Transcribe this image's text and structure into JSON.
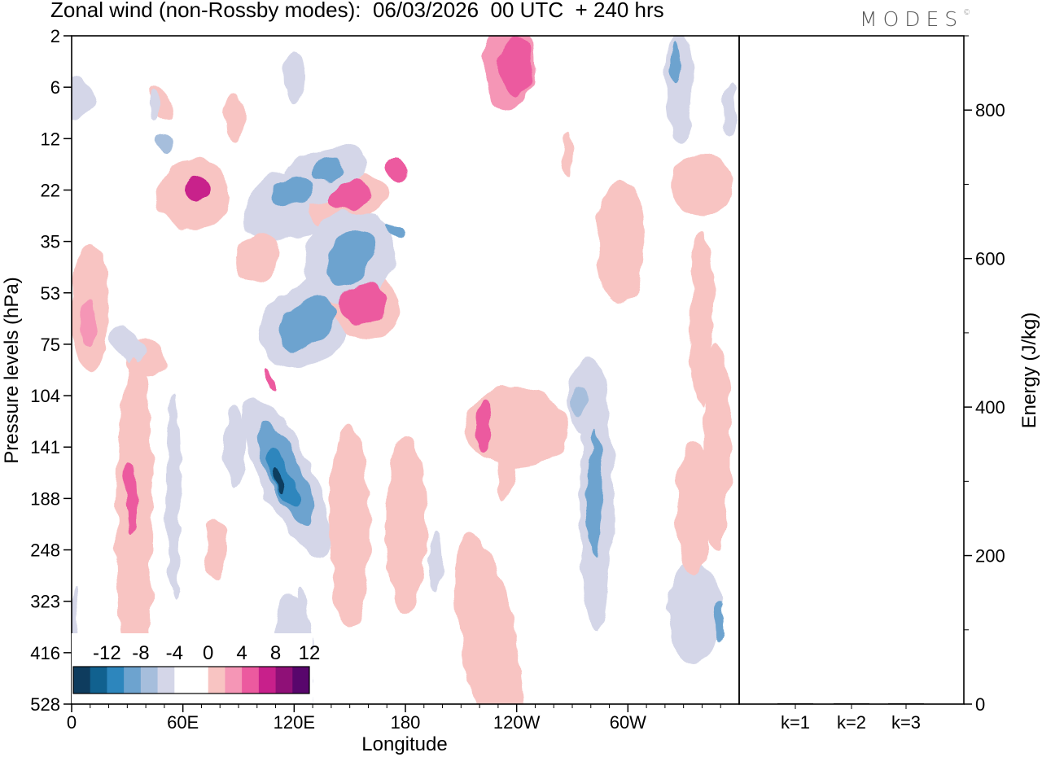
{
  "header": {
    "title": "Zonal wind (non-Rossby modes):  06/03/2026  00 UTC  + 240 hrs",
    "logo": "MODES"
  },
  "chart_data": [
    {
      "type": "heatmap",
      "title": "Zonal wind (non-Rossby modes):  06/03/2026  00 UTC  + 240 hrs",
      "xlabel": "Longitude",
      "ylabel": "Pressure levels (hPa)",
      "x_ticks": [
        "0",
        "60E",
        "120E",
        "180",
        "120W",
        "60W"
      ],
      "x_tick_degrees": [
        0,
        60,
        120,
        180,
        240,
        300
      ],
      "xlim": [
        0,
        360
      ],
      "y_ticks": [
        "2",
        "6",
        "12",
        "22",
        "35",
        "53",
        "75",
        "104",
        "141",
        "188",
        "248",
        "323",
        "416",
        "528"
      ],
      "colorbar": {
        "labels": [
          "-12",
          "-8",
          "-4",
          "0",
          "4",
          "8",
          "12"
        ],
        "colors": [
          "#0e3c5e",
          "#11618f",
          "#2d86bd",
          "#6da3cf",
          "#a6bedc",
          "#d4d6e8",
          "#ffffff",
          "#ffffff",
          "#f8c4c2",
          "#f596b6",
          "#ec5a9f",
          "#c8208b",
          "#8f1077",
          "#58066c"
        ]
      },
      "blobs": [
        {
          "lon": 112,
          "lev": 8.65,
          "w": 4.5,
          "h": 0.55,
          "v": -14,
          "rot": -25
        },
        {
          "lon": 114,
          "lev": 8.6,
          "w": 11,
          "h": 1.2,
          "v": -10,
          "rot": -25
        },
        {
          "lon": 115,
          "lev": 8.5,
          "w": 18,
          "h": 2.2,
          "v": -7,
          "rot": -25
        },
        {
          "lon": 116,
          "lev": 8.6,
          "w": 28,
          "h": 3.4,
          "v": -3.5,
          "rot": -25
        },
        {
          "lon": 117,
          "lev": 11.5,
          "w": 15,
          "h": 1.2,
          "v": -3.5,
          "rot": 0
        },
        {
          "lon": 107,
          "lev": 6.7,
          "w": 4,
          "h": 0.5,
          "v": 6,
          "rot": -25
        },
        {
          "lon": 127,
          "lev": 5.6,
          "w": 36,
          "h": 0.8,
          "v": -6.5,
          "rot": -37
        },
        {
          "lon": 127,
          "lev": 5.6,
          "w": 56,
          "h": 1.5,
          "v": -3.5,
          "rot": -37
        },
        {
          "lon": 157,
          "lev": 5.2,
          "w": 26,
          "h": 0.8,
          "v": 6,
          "rot": -32
        },
        {
          "lon": 158,
          "lev": 5.2,
          "w": 36,
          "h": 1.5,
          "v": 3.5,
          "rot": -32
        },
        {
          "lon": 68,
          "lev": 3.0,
          "w": 14,
          "h": 0.5,
          "v": 9,
          "rot": -30
        },
        {
          "lon": 66,
          "lev": 3.1,
          "w": 40,
          "h": 1.4,
          "v": 3.5,
          "rot": -30
        },
        {
          "lon": 120,
          "lev": 3.0,
          "w": 22,
          "h": 0.6,
          "v": -7,
          "rot": -20
        },
        {
          "lon": 118,
          "lev": 3.3,
          "w": 54,
          "h": 1.3,
          "v": -3.5,
          "rot": -20
        },
        {
          "lon": 150,
          "lev": 3.1,
          "w": 22,
          "h": 0.5,
          "v": 7,
          "rot": -20
        },
        {
          "lon": 148,
          "lev": 3.2,
          "w": 44,
          "h": 1.0,
          "v": 3.5,
          "rot": -20
        },
        {
          "lon": 138,
          "lev": 2.6,
          "w": 16,
          "h": 0.5,
          "v": -7,
          "rot": -20
        },
        {
          "lon": 136,
          "lev": 2.7,
          "w": 48,
          "h": 1.0,
          "v": -3.5,
          "rot": -20
        },
        {
          "lon": 175,
          "lev": 2.6,
          "w": 10,
          "h": 0.5,
          "v": 7,
          "rot": -30
        },
        {
          "lon": 150,
          "lev": 4.3,
          "w": 52,
          "h": 1.7,
          "v": -3.5,
          "rot": -55
        },
        {
          "lon": 150,
          "lev": 4.3,
          "w": 34,
          "h": 0.8,
          "v": -7,
          "rot": -55
        },
        {
          "lon": 175,
          "lev": 3.8,
          "w": 6,
          "h": 0.5,
          "v": -7,
          "rot": -60
        },
        {
          "lon": 100,
          "lev": 4.3,
          "w": 28,
          "h": 0.8,
          "v": 3.5,
          "rot": -55
        },
        {
          "lon": 120,
          "lev": 0.8,
          "w": 12,
          "h": 1.0,
          "v": -3.5,
          "rot": 0
        },
        {
          "lon": 50,
          "lev": 2.1,
          "w": 8,
          "h": 0.4,
          "v": -6,
          "rot": -30
        },
        {
          "lon": 240,
          "lev": 0.6,
          "w": 18,
          "h": 1.2,
          "v": 7,
          "rot": 0
        },
        {
          "lon": 236,
          "lev": 0.55,
          "w": 28,
          "h": 1.8,
          "v": 4,
          "rot": 0
        },
        {
          "lon": 326,
          "lev": 0.5,
          "w": 5,
          "h": 0.8,
          "v": -8,
          "rot": 0
        },
        {
          "lon": 328,
          "lev": 1.0,
          "w": 16,
          "h": 2.2,
          "v": -3.5,
          "rot": 0
        },
        {
          "lon": 355,
          "lev": 1.4,
          "w": 8,
          "h": 1.0,
          "v": -3.5,
          "rot": 0
        },
        {
          "lon": 48,
          "lev": 1.3,
          "w": 10,
          "h": 0.8,
          "v": 3.5,
          "rot": -30
        },
        {
          "lon": 2,
          "lev": 1.2,
          "w": 20,
          "h": 0.8,
          "v": -3.5,
          "rot": 0
        },
        {
          "lon": 88,
          "lev": 1.6,
          "w": 10,
          "h": 1.0,
          "v": 3.5,
          "rot": 0
        },
        {
          "lon": 268,
          "lev": 2.3,
          "w": 6,
          "h": 0.8,
          "v": 3.5,
          "rot": 0
        },
        {
          "lon": 340,
          "lev": 2.9,
          "w": 34,
          "h": 1.2,
          "v": 3.5,
          "rot": 0
        },
        {
          "lon": 296,
          "lev": 4.0,
          "w": 26,
          "h": 2.4,
          "v": 3.5,
          "rot": 0
        },
        {
          "lon": 340,
          "lev": 5.5,
          "w": 12,
          "h": 3.5,
          "v": 3.5,
          "rot": 0
        },
        {
          "lon": 348,
          "lev": 8.0,
          "w": 14,
          "h": 4.0,
          "v": 3.5,
          "rot": 0
        },
        {
          "lon": 10,
          "lev": 5.3,
          "w": 20,
          "h": 2.5,
          "v": 3.5,
          "rot": 0
        },
        {
          "lon": 10,
          "lev": 5.6,
          "w": 8,
          "h": 0.9,
          "v": 5,
          "rot": 0
        },
        {
          "lon": 40,
          "lev": 6.3,
          "w": 20,
          "h": 0.8,
          "v": 3.5,
          "rot": -20
        },
        {
          "lon": 30,
          "lev": 6.0,
          "w": 14,
          "h": 0.8,
          "v": -3.5,
          "rot": -40
        },
        {
          "lon": 240,
          "lev": 7.6,
          "w": 56,
          "h": 1.6,
          "v": 3.5,
          "rot": 0
        },
        {
          "lon": 222,
          "lev": 7.6,
          "w": 8,
          "h": 1.0,
          "v": 6,
          "rot": 0
        },
        {
          "lon": 234,
          "lev": 8.3,
          "w": 10,
          "h": 1.4,
          "v": 3.5,
          "rot": 0
        },
        {
          "lon": 278,
          "lev": 7.0,
          "w": 20,
          "h": 1.5,
          "v": -3.5,
          "rot": 0
        },
        {
          "lon": 274,
          "lev": 7.1,
          "w": 8,
          "h": 0.6,
          "v": -6,
          "rot": 0
        },
        {
          "lon": 283,
          "lev": 9.0,
          "w": 18,
          "h": 5.2,
          "v": -3.5,
          "rot": 0
        },
        {
          "lon": 282,
          "lev": 8.9,
          "w": 8,
          "h": 2.4,
          "v": -7,
          "rot": 0
        },
        {
          "lon": 350,
          "lev": 7.2,
          "w": 12,
          "h": 1.8,
          "v": 3.5,
          "rot": 0
        },
        {
          "lon": 336,
          "lev": 11.2,
          "w": 28,
          "h": 2.0,
          "v": -3.5,
          "rot": 0
        },
        {
          "lon": 349,
          "lev": 11.4,
          "w": 6,
          "h": 0.8,
          "v": -7,
          "rot": 0
        },
        {
          "lon": 336,
          "lev": 9.2,
          "w": 20,
          "h": 2.6,
          "v": 3.5,
          "rot": 0
        },
        {
          "lon": 34,
          "lev": 9.5,
          "w": 20,
          "h": 6.5,
          "v": 3.5,
          "rot": 0
        },
        {
          "lon": 32,
          "lev": 9.0,
          "w": 6,
          "h": 1.4,
          "v": 6,
          "rot": 0
        },
        {
          "lon": 55,
          "lev": 9.0,
          "w": 8,
          "h": 4.0,
          "v": -3.5,
          "rot": 0
        },
        {
          "lon": 78,
          "lev": 10.0,
          "w": 12,
          "h": 1.2,
          "v": 3.5,
          "rot": 0
        },
        {
          "lon": 88,
          "lev": 8.0,
          "w": 12,
          "h": 1.6,
          "v": -3.5,
          "rot": 0
        },
        {
          "lon": 150,
          "lev": 9.5,
          "w": 22,
          "h": 4.0,
          "v": 3.5,
          "rot": 0
        },
        {
          "lon": 180,
          "lev": 9.5,
          "w": 22,
          "h": 3.5,
          "v": 3.5,
          "rot": 0
        },
        {
          "lon": 226,
          "lev": 12.0,
          "w": 30,
          "h": 4.8,
          "v": 3.5,
          "rot": -10
        },
        {
          "lon": 196,
          "lev": 10.2,
          "w": 8,
          "h": 1.2,
          "v": -3.5,
          "rot": 0
        },
        {
          "lon": 124,
          "lev": 12.5,
          "w": 12,
          "h": 3.5,
          "v": -3.5,
          "rot": 0
        },
        {
          "lon": 2,
          "lev": 11.5,
          "w": 5,
          "h": 1.5,
          "v": -3.5,
          "rot": 0
        },
        {
          "lon": 44,
          "lev": 1.3,
          "w": 6,
          "h": 0.6,
          "v": -3.5,
          "rot": 0
        }
      ]
    },
    {
      "type": "bar",
      "categories": [
        "k=1",
        "k=2",
        "k=3"
      ],
      "values": [
        1,
        1,
        1
      ],
      "ylabel": "Energy (J/kg)",
      "ylim": [
        0,
        900
      ],
      "y_ticks": [
        "0",
        "200",
        "400",
        "600",
        "800"
      ],
      "y_tick_values": [
        0,
        200,
        400,
        600,
        800
      ],
      "y_minor_step": 100
    }
  ]
}
